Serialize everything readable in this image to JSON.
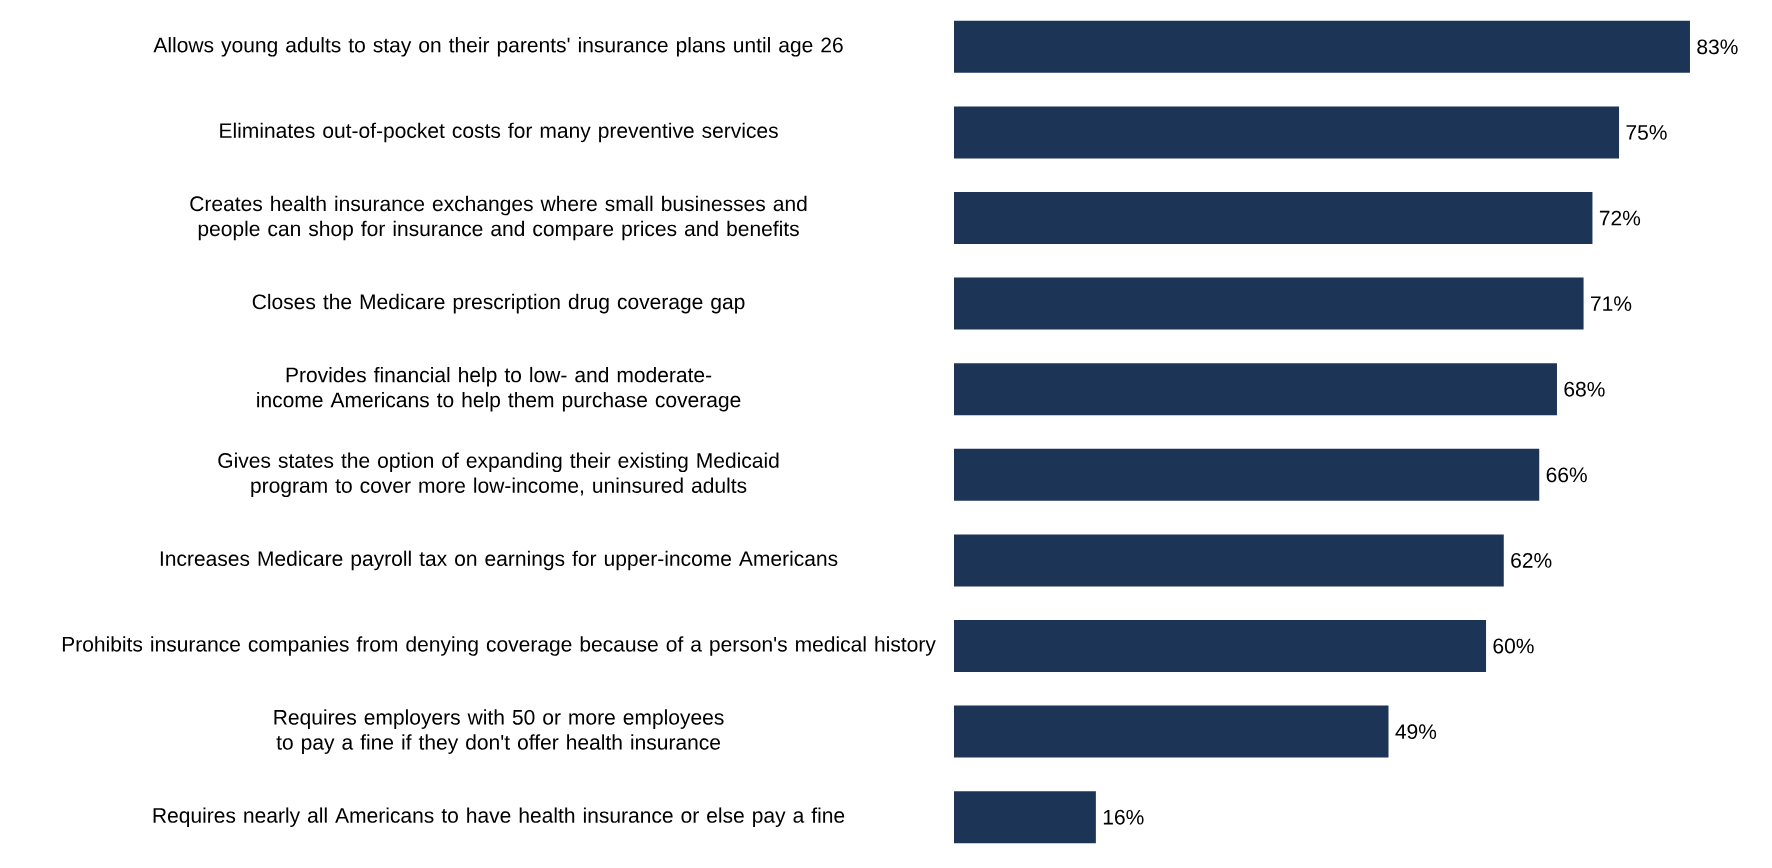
{
  "chart_data": {
    "type": "bar",
    "orientation": "horizontal",
    "categories": [
      "Allows young adults to stay on their parents' insurance plans until age 26",
      "Eliminates out-of-pocket costs for many preventive services",
      "Creates health insurance exchanges where small businesses and people can shop for insurance and compare prices and benefits",
      "Closes the Medicare prescription drug coverage gap",
      "Provides financial help to low- and moderate-income Americans to help them purchase coverage",
      "Gives states the option of expanding their existing Medicaid program to cover more low-income, uninsured adults",
      "Increases Medicare payroll tax on earnings for upper-income Americans",
      "Prohibits insurance companies from denying coverage because of a person's medical history",
      "Requires employers with 50 or more employees to pay a fine if they don't offer health insurance",
      "Requires nearly all Americans to have health insurance or else pay a fine"
    ],
    "values": [
      83,
      75,
      72,
      71,
      68,
      66,
      62,
      60,
      49,
      16
    ],
    "value_labels": [
      "83%",
      "75%",
      "72%",
      "71%",
      "68%",
      "66%",
      "62%",
      "60%",
      "49%",
      "16%"
    ],
    "color": "#1c3557"
  }
}
